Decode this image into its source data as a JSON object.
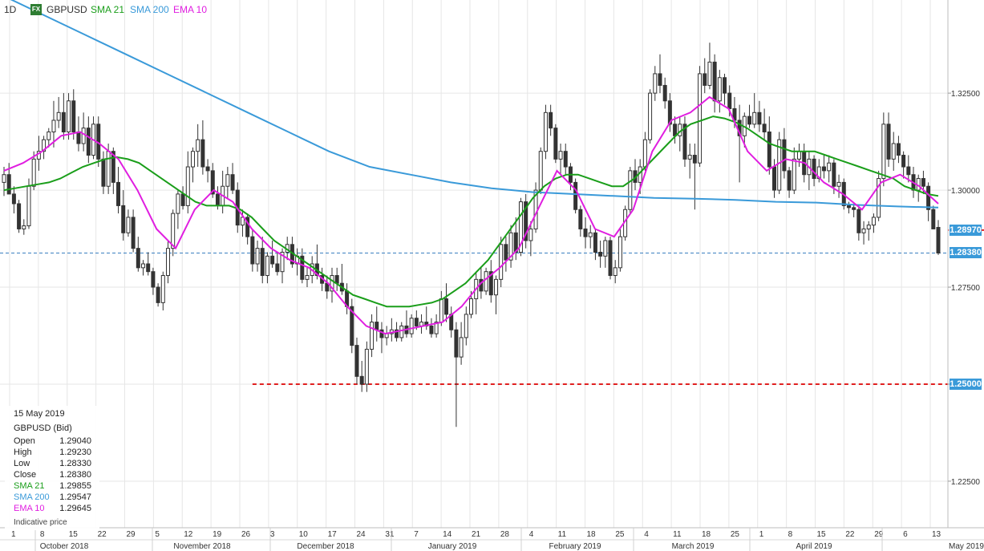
{
  "header": {
    "timeframe": "1D",
    "fx_badge": "FX",
    "symbol": "GBPUSD",
    "indicators": [
      {
        "label": "SMA 21",
        "color": "#1a9e1a"
      },
      {
        "label": "SMA 200",
        "color": "#3a9ad9"
      },
      {
        "label": "EMA 10",
        "color": "#e01ee0"
      }
    ]
  },
  "info_panel": {
    "date": "15 May 2019",
    "instrument": "GBPUSD (Bid)",
    "rows": [
      {
        "label": "Open",
        "value": "1.29040",
        "color": "#222222"
      },
      {
        "label": "High",
        "value": "1.29230",
        "color": "#222222"
      },
      {
        "label": "Low",
        "value": "1.28330",
        "color": "#222222"
      },
      {
        "label": "Close",
        "value": "1.28380",
        "color": "#222222"
      },
      {
        "label": "SMA 21",
        "value": "1.29855",
        "color": "#1a9e1a"
      },
      {
        "label": "SMA 200",
        "value": "1.29547",
        "color": "#3a9ad9"
      },
      {
        "label": "EMA 10",
        "value": "1.29645",
        "color": "#e01ee0"
      }
    ],
    "footer": "Indicative price"
  },
  "price_tags": [
    {
      "label": "1.28970",
      "value": 1.2897,
      "color": "#3a9ad9"
    },
    {
      "label": "1.28380",
      "value": 1.2838,
      "color": "#3a9ad9"
    },
    {
      "label": "1.25000",
      "value": 1.25,
      "color": "#3a9ad9"
    }
  ],
  "chart_data": {
    "type": "candlestick",
    "ylim": [
      1.213,
      1.349
    ],
    "y_ticks": [
      {
        "value": 1.325,
        "label": "1.32500"
      },
      {
        "value": 1.3,
        "label": "1.30000"
      },
      {
        "value": 1.275,
        "label": "1.27500"
      },
      {
        "value": 1.25,
        "label": "1.25000"
      },
      {
        "value": 1.225,
        "label": "1.22500"
      }
    ],
    "day_ticks": [
      "1",
      "8",
      "15",
      "22",
      "29",
      "5",
      "12",
      "19",
      "26",
      "3",
      "10",
      "17",
      "24",
      "31",
      "7",
      "14",
      "21",
      "28",
      "4",
      "11",
      "18",
      "25",
      "4",
      "11",
      "18",
      "25",
      "1",
      "8",
      "15",
      "22",
      "29",
      "6",
      "13"
    ],
    "month_labels": [
      "October 2018",
      "November 2018",
      "December 2018",
      "January 2019",
      "February 2019",
      "March 2019",
      "April 2019",
      "May 2019"
    ],
    "horizontal_levels": [
      {
        "value": 1.25,
        "style": "red-dashed",
        "from_session": 50
      },
      {
        "value": 1.2897,
        "style": "red-dashed",
        "from_session": 209
      },
      {
        "value": 1.2838,
        "style": "blue-dashed",
        "from_session": 0
      }
    ],
    "candles": [
      [
        1.302,
        1.306,
        1.2985,
        1.304
      ],
      [
        1.304,
        1.307,
        1.3,
        1.299
      ],
      [
        1.299,
        1.301,
        1.294,
        1.2965
      ],
      [
        1.2965,
        1.2975,
        1.289,
        1.29
      ],
      [
        1.29,
        1.2925,
        1.2885,
        1.2908
      ],
      [
        1.2908,
        1.303,
        1.29,
        1.301
      ],
      [
        1.301,
        1.31,
        1.3,
        1.308
      ],
      [
        1.308,
        1.314,
        1.305,
        1.31
      ],
      [
        1.31,
        1.314,
        1.308,
        1.313
      ],
      [
        1.313,
        1.316,
        1.311,
        1.315
      ],
      [
        1.315,
        1.323,
        1.311,
        1.318
      ],
      [
        1.318,
        1.324,
        1.316,
        1.32
      ],
      [
        1.32,
        1.325,
        1.313,
        1.315
      ],
      [
        1.315,
        1.325,
        1.313,
        1.323
      ],
      [
        1.323,
        1.326,
        1.313,
        1.315
      ],
      [
        1.315,
        1.319,
        1.31,
        1.312
      ],
      [
        1.312,
        1.32,
        1.31,
        1.316
      ],
      [
        1.316,
        1.319,
        1.307,
        1.309
      ],
      [
        1.309,
        1.319,
        1.308,
        1.317
      ],
      [
        1.317,
        1.319,
        1.306,
        1.308
      ],
      [
        1.308,
        1.31,
        1.299,
        1.301
      ],
      [
        1.301,
        1.312,
        1.299,
        1.31
      ],
      [
        1.31,
        1.311,
        1.299,
        1.302
      ],
      [
        1.302,
        1.306,
        1.294,
        1.296
      ],
      [
        1.296,
        1.3,
        1.287,
        1.289
      ],
      [
        1.289,
        1.295,
        1.288,
        1.293
      ],
      [
        1.293,
        1.295,
        1.284,
        1.285
      ],
      [
        1.285,
        1.288,
        1.279,
        1.28
      ],
      [
        1.28,
        1.282,
        1.278,
        1.281
      ],
      [
        1.281,
        1.284,
        1.278,
        1.279
      ],
      [
        1.279,
        1.28,
        1.273,
        1.275
      ],
      [
        1.275,
        1.276,
        1.27,
        1.271
      ],
      [
        1.271,
        1.279,
        1.269,
        1.278
      ],
      [
        1.278,
        1.287,
        1.276,
        1.285
      ],
      [
        1.285,
        1.295,
        1.283,
        1.294
      ],
      [
        1.294,
        1.3,
        1.29,
        1.299
      ],
      [
        1.299,
        1.301,
        1.295,
        1.296
      ],
      [
        1.296,
        1.31,
        1.294,
        1.306
      ],
      [
        1.306,
        1.311,
        1.302,
        1.31
      ],
      [
        1.31,
        1.317,
        1.306,
        1.313
      ],
      [
        1.313,
        1.318,
        1.304,
        1.306
      ],
      [
        1.306,
        1.308,
        1.302,
        1.305
      ],
      [
        1.305,
        1.307,
        1.298,
        1.299
      ],
      [
        1.299,
        1.301,
        1.295,
        1.296
      ],
      [
        1.296,
        1.305,
        1.294,
        1.301
      ],
      [
        1.301,
        1.306,
        1.298,
        1.304
      ],
      [
        1.304,
        1.307,
        1.299,
        1.3
      ],
      [
        1.3,
        1.302,
        1.289,
        1.291
      ],
      [
        1.291,
        1.295,
        1.288,
        1.293
      ],
      [
        1.293,
        1.294,
        1.286,
        1.288
      ],
      [
        1.288,
        1.29,
        1.279,
        1.281
      ],
      [
        1.281,
        1.287,
        1.279,
        1.285
      ],
      [
        1.285,
        1.288,
        1.276,
        1.278
      ],
      [
        1.278,
        1.284,
        1.276,
        1.283
      ],
      [
        1.283,
        1.287,
        1.28,
        1.281
      ],
      [
        1.281,
        1.284,
        1.278,
        1.279
      ],
      [
        1.279,
        1.285,
        1.276,
        1.284
      ],
      [
        1.284,
        1.288,
        1.282,
        1.286
      ],
      [
        1.286,
        1.288,
        1.28,
        1.281
      ],
      [
        1.281,
        1.285,
        1.278,
        1.283
      ],
      [
        1.283,
        1.285,
        1.276,
        1.277
      ],
      [
        1.277,
        1.28,
        1.275,
        1.278
      ],
      [
        1.278,
        1.283,
        1.276,
        1.281
      ],
      [
        1.281,
        1.286,
        1.277,
        1.278
      ],
      [
        1.278,
        1.28,
        1.274,
        1.276
      ],
      [
        1.276,
        1.278,
        1.272,
        1.274
      ],
      [
        1.274,
        1.28,
        1.271,
        1.278
      ],
      [
        1.278,
        1.28,
        1.274,
        1.276
      ],
      [
        1.276,
        1.281,
        1.273,
        1.274
      ],
      [
        1.274,
        1.276,
        1.268,
        1.27
      ],
      [
        1.27,
        1.272,
        1.258,
        1.26
      ],
      [
        1.26,
        1.262,
        1.25,
        1.252
      ],
      [
        1.252,
        1.256,
        1.248,
        1.25
      ],
      [
        1.25,
        1.261,
        1.248,
        1.259
      ],
      [
        1.259,
        1.268,
        1.257,
        1.266
      ],
      [
        1.266,
        1.27,
        1.261,
        1.264
      ],
      [
        1.264,
        1.266,
        1.258,
        1.262
      ],
      [
        1.262,
        1.265,
        1.26,
        1.263
      ],
      [
        1.263,
        1.267,
        1.261,
        1.264
      ],
      [
        1.264,
        1.266,
        1.261,
        1.262
      ],
      [
        1.262,
        1.266,
        1.261,
        1.265
      ],
      [
        1.265,
        1.269,
        1.262,
        1.263
      ],
      [
        1.263,
        1.268,
        1.262,
        1.267
      ],
      [
        1.267,
        1.269,
        1.264,
        1.265
      ],
      [
        1.265,
        1.268,
        1.263,
        1.266
      ],
      [
        1.266,
        1.27,
        1.264,
        1.265
      ],
      [
        1.265,
        1.267,
        1.262,
        1.263
      ],
      [
        1.263,
        1.268,
        1.262,
        1.266
      ],
      [
        1.266,
        1.274,
        1.265,
        1.272
      ],
      [
        1.272,
        1.276,
        1.266,
        1.268
      ],
      [
        1.268,
        1.27,
        1.262,
        1.264
      ],
      [
        1.264,
        1.266,
        1.239,
        1.257
      ],
      [
        1.257,
        1.266,
        1.255,
        1.262
      ],
      [
        1.262,
        1.27,
        1.26,
        1.268
      ],
      [
        1.268,
        1.274,
        1.267,
        1.272
      ],
      [
        1.272,
        1.279,
        1.268,
        1.277
      ],
      [
        1.277,
        1.28,
        1.272,
        1.274
      ],
      [
        1.274,
        1.28,
        1.273,
        1.279
      ],
      [
        1.279,
        1.282,
        1.271,
        1.273
      ],
      [
        1.273,
        1.278,
        1.268,
        1.277
      ],
      [
        1.277,
        1.288,
        1.275,
        1.286
      ],
      [
        1.286,
        1.288,
        1.279,
        1.282
      ],
      [
        1.282,
        1.291,
        1.28,
        1.289
      ],
      [
        1.289,
        1.293,
        1.282,
        1.284
      ],
      [
        1.284,
        1.298,
        1.283,
        1.297
      ],
      [
        1.297,
        1.299,
        1.285,
        1.287
      ],
      [
        1.287,
        1.292,
        1.283,
        1.29
      ],
      [
        1.29,
        1.302,
        1.289,
        1.3
      ],
      [
        1.3,
        1.311,
        1.299,
        1.31
      ],
      [
        1.31,
        1.322,
        1.308,
        1.32
      ],
      [
        1.32,
        1.322,
        1.314,
        1.316
      ],
      [
        1.316,
        1.317,
        1.307,
        1.308
      ],
      [
        1.308,
        1.312,
        1.304,
        1.31
      ],
      [
        1.31,
        1.312,
        1.304,
        1.306
      ],
      [
        1.306,
        1.307,
        1.3,
        1.302
      ],
      [
        1.302,
        1.303,
        1.294,
        1.295
      ],
      [
        1.295,
        1.296,
        1.288,
        1.29
      ],
      [
        1.29,
        1.293,
        1.285,
        1.288
      ],
      [
        1.288,
        1.291,
        1.285,
        1.289
      ],
      [
        1.289,
        1.29,
        1.282,
        1.284
      ],
      [
        1.284,
        1.287,
        1.28,
        1.283
      ],
      [
        1.283,
        1.288,
        1.28,
        1.287
      ],
      [
        1.287,
        1.288,
        1.277,
        1.278
      ],
      [
        1.278,
        1.282,
        1.276,
        1.28
      ],
      [
        1.28,
        1.29,
        1.279,
        1.288
      ],
      [
        1.288,
        1.296,
        1.287,
        1.295
      ],
      [
        1.295,
        1.306,
        1.294,
        1.305
      ],
      [
        1.305,
        1.308,
        1.3,
        1.302
      ],
      [
        1.302,
        1.308,
        1.299,
        1.306
      ],
      [
        1.306,
        1.315,
        1.305,
        1.313
      ],
      [
        1.313,
        1.326,
        1.312,
        1.325
      ],
      [
        1.325,
        1.332,
        1.323,
        1.33
      ],
      [
        1.33,
        1.335,
        1.325,
        1.327
      ],
      [
        1.327,
        1.329,
        1.321,
        1.323
      ],
      [
        1.323,
        1.325,
        1.315,
        1.317
      ],
      [
        1.317,
        1.319,
        1.312,
        1.314
      ],
      [
        1.314,
        1.319,
        1.31,
        1.317
      ],
      [
        1.317,
        1.319,
        1.306,
        1.308
      ],
      [
        1.308,
        1.312,
        1.303,
        1.309
      ],
      [
        1.309,
        1.312,
        1.295,
        1.307
      ],
      [
        1.307,
        1.332,
        1.306,
        1.33
      ],
      [
        1.33,
        1.334,
        1.325,
        1.327
      ],
      [
        1.327,
        1.338,
        1.326,
        1.333
      ],
      [
        1.333,
        1.335,
        1.32,
        1.323
      ],
      [
        1.323,
        1.331,
        1.32,
        1.329
      ],
      [
        1.329,
        1.33,
        1.322,
        1.325
      ],
      [
        1.325,
        1.327,
        1.319,
        1.321
      ],
      [
        1.321,
        1.324,
        1.316,
        1.318
      ],
      [
        1.318,
        1.322,
        1.302,
        1.314
      ],
      [
        1.314,
        1.32,
        1.311,
        1.319
      ],
      [
        1.319,
        1.322,
        1.316,
        1.317
      ],
      [
        1.317,
        1.325,
        1.316,
        1.32
      ],
      [
        1.32,
        1.323,
        1.315,
        1.317
      ],
      [
        1.317,
        1.321,
        1.313,
        1.315
      ],
      [
        1.315,
        1.319,
        1.304,
        1.306
      ],
      [
        1.306,
        1.308,
        1.298,
        1.3
      ],
      [
        1.3,
        1.315,
        1.299,
        1.313
      ],
      [
        1.313,
        1.316,
        1.303,
        1.305
      ],
      [
        1.305,
        1.306,
        1.298,
        1.3
      ],
      [
        1.3,
        1.311,
        1.299,
        1.308
      ],
      [
        1.308,
        1.312,
        1.306,
        1.31
      ],
      [
        1.31,
        1.312,
        1.302,
        1.304
      ],
      [
        1.304,
        1.31,
        1.3,
        1.308
      ],
      [
        1.308,
        1.309,
        1.301,
        1.303
      ],
      [
        1.303,
        1.308,
        1.302,
        1.306
      ],
      [
        1.306,
        1.309,
        1.303,
        1.305
      ],
      [
        1.305,
        1.309,
        1.302,
        1.307
      ],
      [
        1.307,
        1.308,
        1.299,
        1.301
      ],
      [
        1.301,
        1.304,
        1.298,
        1.302
      ],
      [
        1.302,
        1.303,
        1.295,
        1.296
      ],
      [
        1.296,
        1.297,
        1.294,
        1.2955
      ],
      [
        1.2955,
        1.2965,
        1.293,
        1.295
      ],
      [
        1.295,
        1.296,
        1.287,
        1.289
      ],
      [
        1.289,
        1.292,
        1.286,
        1.29
      ],
      [
        1.29,
        1.292,
        1.287,
        1.291
      ],
      [
        1.291,
        1.294,
        1.289,
        1.293
      ],
      [
        1.293,
        1.305,
        1.292,
        1.303
      ],
      [
        1.303,
        1.32,
        1.301,
        1.317
      ],
      [
        1.317,
        1.32,
        1.306,
        1.308
      ],
      [
        1.308,
        1.315,
        1.305,
        1.312
      ],
      [
        1.312,
        1.314,
        1.307,
        1.309
      ],
      [
        1.309,
        1.31,
        1.303,
        1.306
      ],
      [
        1.306,
        1.309,
        1.302,
        1.304
      ],
      [
        1.304,
        1.306,
        1.298,
        1.3
      ],
      [
        1.3,
        1.304,
        1.297,
        1.303
      ],
      [
        1.303,
        1.305,
        1.299,
        1.301
      ],
      [
        1.301,
        1.302,
        1.292,
        1.295
      ],
      [
        1.295,
        1.296,
        1.291,
        1.29
      ],
      [
        1.2904,
        1.2923,
        1.2833,
        1.2838
      ]
    ],
    "sma21": [
      1.3,
      1.3005,
      1.301,
      1.3015,
      1.302,
      1.303,
      1.3045,
      1.306,
      1.307,
      1.308,
      1.3085,
      1.308,
      1.307,
      1.305,
      1.303,
      1.301,
      1.299,
      1.297,
      1.296,
      1.296,
      1.296,
      1.295,
      1.293,
      1.29,
      1.287,
      1.285,
      1.283,
      1.281,
      1.279,
      1.277,
      1.275,
      1.273,
      1.272,
      1.271,
      1.27,
      1.27,
      1.27,
      1.2705,
      1.271,
      1.272,
      1.274,
      1.276,
      1.279,
      1.282,
      1.286,
      1.29,
      1.294,
      1.298,
      1.301,
      1.303,
      1.304,
      1.304,
      1.303,
      1.302,
      1.301,
      1.301,
      1.303,
      1.306,
      1.309,
      1.312,
      1.315,
      1.317,
      1.318,
      1.319,
      1.3185,
      1.3175,
      1.316,
      1.314,
      1.312,
      1.311,
      1.31,
      1.31,
      1.31,
      1.309,
      1.308,
      1.307,
      1.306,
      1.305,
      1.304,
      1.303,
      1.301,
      1.3,
      1.299,
      1.2985
    ],
    "sma200": [
      1.35,
      1.345,
      1.34,
      1.335,
      1.33,
      1.325,
      1.32,
      1.315,
      1.31,
      1.306,
      1.304,
      1.302,
      1.3005,
      1.2995,
      1.299,
      1.2985,
      1.298,
      1.2978,
      1.2975,
      1.297,
      1.2968,
      1.2962,
      1.2958,
      1.2955
    ],
    "ema10": [
      1.305,
      1.307,
      1.31,
      1.314,
      1.315,
      1.312,
      1.308,
      1.3,
      1.29,
      1.285,
      1.295,
      1.3,
      1.297,
      1.29,
      1.285,
      1.282,
      1.28,
      1.276,
      1.27,
      1.265,
      1.263,
      1.264,
      1.265,
      1.266,
      1.27,
      1.276,
      1.28,
      1.285,
      1.295,
      1.305,
      1.3,
      1.29,
      1.288,
      1.295,
      1.31,
      1.318,
      1.32,
      1.324,
      1.321,
      1.31,
      1.305,
      1.308,
      1.307,
      1.302,
      1.299,
      1.295,
      1.302,
      1.304,
      1.301,
      1.2965
    ]
  }
}
